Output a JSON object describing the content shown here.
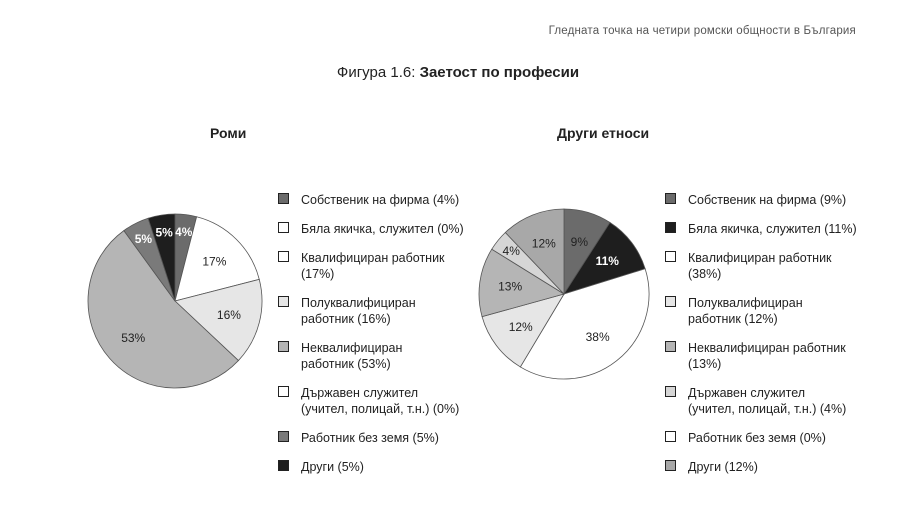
{
  "header": "Гледната точка на четири ромски общности в България",
  "figure_title": {
    "prefix": "Фигура 1.6:",
    "title": "Заетост по професии"
  },
  "chart_data": [
    {
      "type": "pie",
      "title": "Роми",
      "series": [
        {
          "name": "Собственик на фирма (4%)",
          "value": 4,
          "label": "4%",
          "color": "#6b6b6b",
          "label_color": "#ffffff",
          "label_bold": true
        },
        {
          "name": "Бяла якичка, служител (0%)",
          "value": 0,
          "label": "",
          "color": "#ffffff",
          "label_color": "#222222",
          "label_bold": false
        },
        {
          "name": "Квалифициран работник (17%)",
          "value": 17,
          "label": "17%",
          "color": "#ffffff",
          "label_color": "#222222",
          "label_bold": false
        },
        {
          "name": "Полуквалифициран работник (16%)",
          "value": 16,
          "label": "16%",
          "color": "#e6e6e6",
          "label_color": "#222222",
          "label_bold": false
        },
        {
          "name": "Неквалифициран работник  (53%)",
          "value": 53,
          "label": "53%",
          "color": "#b5b5b5",
          "label_color": "#222222",
          "label_bold": false
        },
        {
          "name": "Държавен служител (учител, полицай, т.н.) (0%)",
          "value": 0,
          "label": "",
          "color": "#ffffff",
          "label_color": "#222222",
          "label_bold": false
        },
        {
          "name": "Работник без земя (5%)",
          "value": 5,
          "label": "5%",
          "color": "#7a7a7a",
          "label_color": "#ffffff",
          "label_bold": true
        },
        {
          "name": "Други (5%)",
          "value": 5,
          "label": "5%",
          "color": "#1e1e1e",
          "label_color": "#ffffff",
          "label_bold": true
        }
      ]
    },
    {
      "type": "pie",
      "title": "Други етноси",
      "series": [
        {
          "name": "Собственик на фирма (9%)",
          "value": 9,
          "label": "9%",
          "color": "#6b6b6b",
          "label_color": "#222222",
          "label_bold": false
        },
        {
          "name": "Бяла якичка, служител (11%)",
          "value": 11,
          "label": "11%",
          "color": "#1e1e1e",
          "label_color": "#ffffff",
          "label_bold": true
        },
        {
          "name": "Квалифициран работник (38%)",
          "value": 38,
          "label": "38%",
          "color": "#ffffff",
          "label_color": "#222222",
          "label_bold": false
        },
        {
          "name": "Полуквалифициран работник (12%)",
          "value": 12,
          "label": "12%",
          "color": "#e6e6e6",
          "label_color": "#222222",
          "label_bold": false
        },
        {
          "name": "Неквалифициран работник (13%)",
          "value": 13,
          "label": "13%",
          "color": "#b5b5b5",
          "label_color": "#222222",
          "label_bold": false
        },
        {
          "name": "Държавен служител (учител, полицай, т.н.) (4%)",
          "value": 4,
          "label": "4%",
          "color": "#d6d6d6",
          "label_color": "#222222",
          "label_bold": false
        },
        {
          "name": "Работник без земя (0%)",
          "value": 0,
          "label": "",
          "color": "#ffffff",
          "label_color": "#222222",
          "label_bold": false
        },
        {
          "name": "Други (12%)",
          "value": 12,
          "label": "12%",
          "color": "#a8a8a8",
          "label_color": "#222222",
          "label_bold": false
        }
      ]
    }
  ],
  "legends": [
    {
      "items": [
        {
          "lines": [
            "Собственик на фирма (4%)"
          ],
          "color": "#6b6b6b"
        },
        {
          "lines": [
            "Бяла якичка, служител (0%)"
          ],
          "color": "#ffffff"
        },
        {
          "lines": [
            "Квалифициран работник",
            "(17%)"
          ],
          "color": "#ffffff"
        },
        {
          "lines": [
            "Полуквалифициран",
            "работник (16%)"
          ],
          "color": "#e6e6e6"
        },
        {
          "lines": [
            "Неквалифициран",
            "работник  (53%)"
          ],
          "color": "#b5b5b5"
        },
        {
          "lines": [
            "Държавен служител",
            "(учител, полицай, т.н.) (0%)"
          ],
          "color": "#ffffff"
        },
        {
          "lines": [
            "Работник без земя (5%)"
          ],
          "color": "#7a7a7a"
        },
        {
          "lines": [
            "Други (5%)"
          ],
          "color": "#1e1e1e"
        }
      ]
    },
    {
      "items": [
        {
          "lines": [
            "Собственик на фирма (9%)"
          ],
          "color": "#6b6b6b"
        },
        {
          "lines": [
            "Бяла якичка, служител (11%)"
          ],
          "color": "#1e1e1e"
        },
        {
          "lines": [
            "Квалифициран работник",
            "(38%)"
          ],
          "color": "#ffffff"
        },
        {
          "lines": [
            "Полуквалифициран",
            "работник (12%)"
          ],
          "color": "#e6e6e6"
        },
        {
          "lines": [
            "Неквалифициран работник",
            "(13%)"
          ],
          "color": "#b5b5b5"
        },
        {
          "lines": [
            "Държавен служител",
            "(учител, полицай, т.н.) (4%)"
          ],
          "color": "#d6d6d6"
        },
        {
          "lines": [
            "Работник без земя (0%)"
          ],
          "color": "#ffffff"
        },
        {
          "lines": [
            "Други (12%)"
          ],
          "color": "#a8a8a8"
        }
      ]
    }
  ]
}
